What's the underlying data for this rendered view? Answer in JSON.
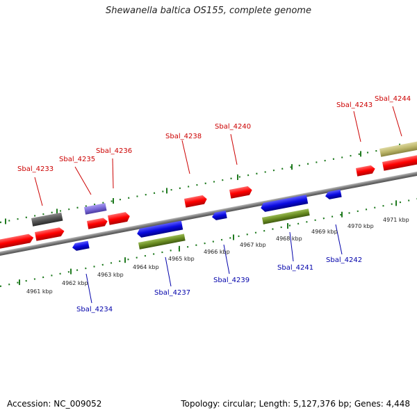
{
  "title": "Shewanella baltica OS155, complete genome",
  "footer": {
    "accession": "Accession: NC_009052",
    "summary": "Topology: circular; Length: 5,127,376 bp; Genes: 4,448"
  },
  "colors": {
    "forward_cds": "#ff0000",
    "reverse_cds": "#1010dd",
    "forward_label": "#cc0000",
    "reverse_label": "#0000aa",
    "tick": "#1f7a1f",
    "backbone": "#808080",
    "gray_feature": "#555555",
    "purple_feature": "#7a6ad8",
    "olive_feature": "#6b8e23",
    "khaki_feature": "#bdb76b"
  },
  "scale_labels": [
    "4961 kbp",
    "4962 kbp",
    "4963 kbp",
    "4964 kbp",
    "4965 kbp",
    "4966 kbp",
    "4967 kbp",
    "4968 kbp",
    "4969 kbp",
    "4970 kbp",
    "4971 kbp"
  ],
  "forward_genes": [
    "Sbal_4233",
    "Sbal_4235",
    "Sbal_4236",
    "Sbal_4238",
    "Sbal_4240",
    "Sbal_4243",
    "Sbal_4244"
  ],
  "reverse_genes": [
    "Sbal_4234",
    "Sbal_4237",
    "Sbal_4239",
    "Sbal_4241",
    "Sbal_4242"
  ]
}
